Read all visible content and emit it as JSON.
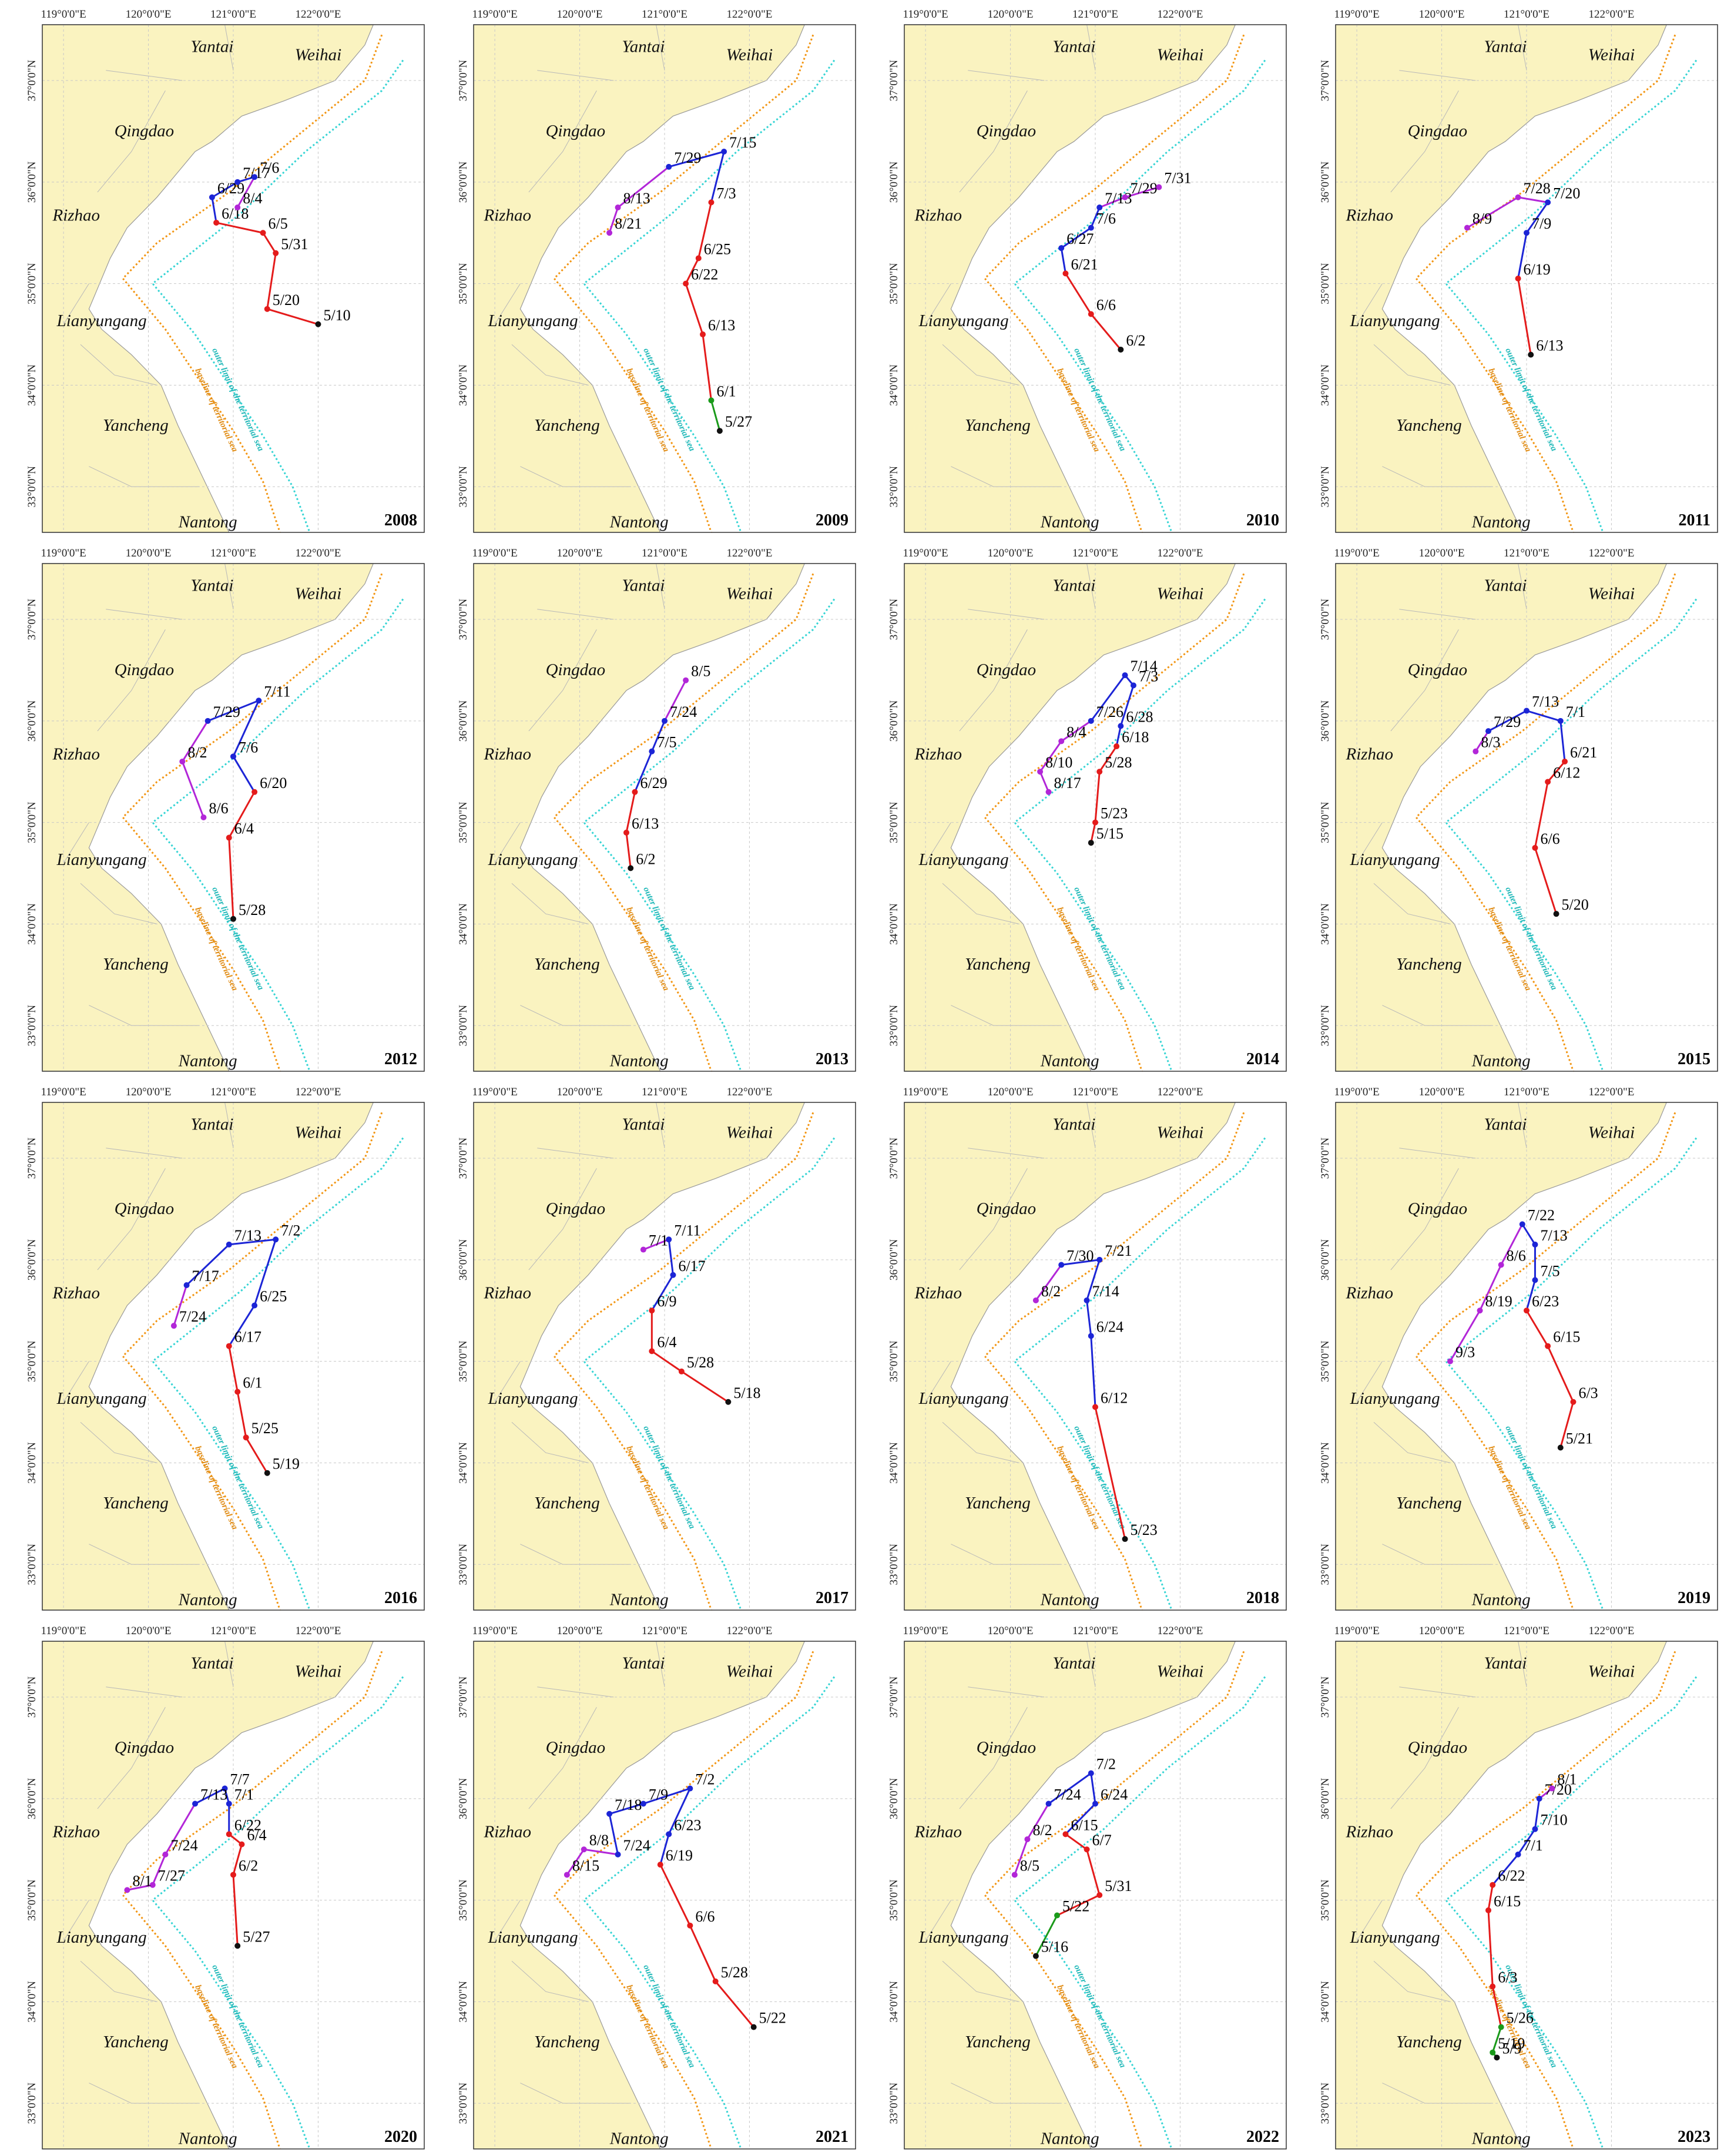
{
  "axes": {
    "lon_labels": [
      "119°0'0\"E",
      "120°0'0\"E",
      "121°0'0\"E",
      "122°0'0\"E"
    ],
    "lat_labels": [
      "37°0'0\"N",
      "36°0'0\"N",
      "35°0'0\"N",
      "34°0'0\"N",
      "33°0'0\"N"
    ],
    "lon_values": [
      119,
      120,
      121,
      122
    ],
    "lat_values": [
      37,
      36,
      35,
      34,
      33
    ],
    "lon_range": [
      118.75,
      123.25
    ],
    "lat_range": [
      32.55,
      37.55
    ]
  },
  "cities": [
    {
      "name": "Yantai",
      "lon": 120.75,
      "lat": 37.28
    },
    {
      "name": "Weihai",
      "lon": 122.0,
      "lat": 37.2
    },
    {
      "name": "Qingdao",
      "lon": 119.95,
      "lat": 36.45
    },
    {
      "name": "Rizhao",
      "lon": 119.15,
      "lat": 35.62
    },
    {
      "name": "Lianyungang",
      "lon": 119.45,
      "lat": 34.58
    },
    {
      "name": "Yancheng",
      "lon": 119.85,
      "lat": 33.55
    },
    {
      "name": "Nantong",
      "lon": 120.7,
      "lat": 32.6
    }
  ],
  "boundary_labels": {
    "outer": "outer limit of the territorial sea",
    "baseline": "baseline of territorial sea"
  },
  "colors": {
    "land": "#faf3c0",
    "sea": "#ffffff",
    "baseline": "#f29512",
    "outer": "#35d4d4",
    "phase1": "#1a9a1a",
    "phase2": "#e41b1b",
    "phase3": "#1c25d6",
    "phase4": "#b226d8"
  },
  "panels": [
    {
      "year": "2008",
      "points": [
        {
          "d": "5/10",
          "lon": 122.0,
          "lat": 34.6,
          "c": "phase1"
        },
        {
          "d": "5/20",
          "lon": 121.4,
          "lat": 34.75,
          "c": "phase2"
        },
        {
          "d": "5/31",
          "lon": 121.5,
          "lat": 35.3,
          "c": "phase2"
        },
        {
          "d": "6/5",
          "lon": 121.35,
          "lat": 35.5,
          "c": "phase2"
        },
        {
          "d": "6/18",
          "lon": 120.8,
          "lat": 35.6,
          "c": "phase2"
        },
        {
          "d": "6/29",
          "lon": 120.75,
          "lat": 35.85,
          "c": "phase3"
        },
        {
          "d": "7/17",
          "lon": 121.05,
          "lat": 36.0,
          "c": "phase3"
        },
        {
          "d": "7/6",
          "lon": 121.25,
          "lat": 36.05,
          "c": "phase3"
        },
        {
          "d": "8/4",
          "lon": 121.05,
          "lat": 35.75,
          "c": "phase4"
        }
      ]
    },
    {
      "year": "2009",
      "points": [
        {
          "d": "5/27",
          "lon": 121.65,
          "lat": 33.55,
          "c": "phase1"
        },
        {
          "d": "6/1",
          "lon": 121.55,
          "lat": 33.85,
          "c": "phase1"
        },
        {
          "d": "6/13",
          "lon": 121.45,
          "lat": 34.5,
          "c": "phase2"
        },
        {
          "d": "6/22",
          "lon": 121.25,
          "lat": 35.0,
          "c": "phase2"
        },
        {
          "d": "6/25",
          "lon": 121.4,
          "lat": 35.25,
          "c": "phase2"
        },
        {
          "d": "7/3",
          "lon": 121.55,
          "lat": 35.8,
          "c": "phase2"
        },
        {
          "d": "7/15",
          "lon": 121.7,
          "lat": 36.3,
          "c": "phase3"
        },
        {
          "d": "7/29",
          "lon": 121.05,
          "lat": 36.15,
          "c": "phase3"
        },
        {
          "d": "8/13",
          "lon": 120.45,
          "lat": 35.75,
          "c": "phase4"
        },
        {
          "d": "8/21",
          "lon": 120.35,
          "lat": 35.5,
          "c": "phase4"
        }
      ]
    },
    {
      "year": "2010",
      "points": [
        {
          "d": "6/2",
          "lon": 121.3,
          "lat": 34.35,
          "c": "phase1"
        },
        {
          "d": "6/6",
          "lon": 120.95,
          "lat": 34.7,
          "c": "phase2"
        },
        {
          "d": "6/21",
          "lon": 120.65,
          "lat": 35.1,
          "c": "phase2"
        },
        {
          "d": "6/27",
          "lon": 120.6,
          "lat": 35.35,
          "c": "phase3"
        },
        {
          "d": "7/6",
          "lon": 120.95,
          "lat": 35.55,
          "c": "phase3"
        },
        {
          "d": "7/13",
          "lon": 121.05,
          "lat": 35.75,
          "c": "phase3"
        },
        {
          "d": "7/29",
          "lon": 121.35,
          "lat": 35.85,
          "c": "phase4"
        },
        {
          "d": "7/31",
          "lon": 121.75,
          "lat": 35.95,
          "c": "phase4"
        }
      ]
    },
    {
      "year": "2011",
      "points": [
        {
          "d": "6/13",
          "lon": 121.05,
          "lat": 34.3,
          "c": "phase1"
        },
        {
          "d": "6/19",
          "lon": 120.9,
          "lat": 35.05,
          "c": "phase2"
        },
        {
          "d": "7/9",
          "lon": 121.0,
          "lat": 35.5,
          "c": "phase3"
        },
        {
          "d": "7/20",
          "lon": 121.25,
          "lat": 35.8,
          "c": "phase3"
        },
        {
          "d": "7/28",
          "lon": 120.9,
          "lat": 35.85,
          "c": "phase4"
        },
        {
          "d": "8/9",
          "lon": 120.3,
          "lat": 35.55,
          "c": "phase4"
        }
      ]
    },
    {
      "year": "2012",
      "points": [
        {
          "d": "5/28",
          "lon": 121.0,
          "lat": 34.05,
          "c": "phase1"
        },
        {
          "d": "6/4",
          "lon": 120.95,
          "lat": 34.85,
          "c": "phase2"
        },
        {
          "d": "6/20",
          "lon": 121.25,
          "lat": 35.3,
          "c": "phase2"
        },
        {
          "d": "7/6",
          "lon": 121.0,
          "lat": 35.65,
          "c": "phase3"
        },
        {
          "d": "7/11",
          "lon": 121.3,
          "lat": 36.2,
          "c": "phase3"
        },
        {
          "d": "7/29",
          "lon": 120.7,
          "lat": 36.0,
          "c": "phase3"
        },
        {
          "d": "8/2",
          "lon": 120.4,
          "lat": 35.6,
          "c": "phase4"
        },
        {
          "d": "8/6",
          "lon": 120.65,
          "lat": 35.05,
          "c": "phase4"
        }
      ]
    },
    {
      "year": "2013",
      "points": [
        {
          "d": "6/2",
          "lon": 120.6,
          "lat": 34.55,
          "c": "phase1"
        },
        {
          "d": "6/13",
          "lon": 120.55,
          "lat": 34.9,
          "c": "phase2"
        },
        {
          "d": "6/29",
          "lon": 120.65,
          "lat": 35.3,
          "c": "phase2"
        },
        {
          "d": "7/5",
          "lon": 120.85,
          "lat": 35.7,
          "c": "phase3"
        },
        {
          "d": "7/24",
          "lon": 121.0,
          "lat": 36.0,
          "c": "phase3"
        },
        {
          "d": "8/5",
          "lon": 121.25,
          "lat": 36.4,
          "c": "phase4"
        }
      ]
    },
    {
      "year": "2014",
      "points": [
        {
          "d": "5/15",
          "lon": 120.95,
          "lat": 34.8,
          "c": "phase1"
        },
        {
          "d": "5/23",
          "lon": 121.0,
          "lat": 35.0,
          "c": "phase2"
        },
        {
          "d": "5/28",
          "lon": 121.05,
          "lat": 35.5,
          "c": "phase2"
        },
        {
          "d": "6/18",
          "lon": 121.25,
          "lat": 35.75,
          "c": "phase2"
        },
        {
          "d": "6/28",
          "lon": 121.3,
          "lat": 35.95,
          "c": "phase3"
        },
        {
          "d": "7/3",
          "lon": 121.45,
          "lat": 36.35,
          "c": "phase3"
        },
        {
          "d": "7/14",
          "lon": 121.35,
          "lat": 36.45,
          "c": "phase3"
        },
        {
          "d": "7/26",
          "lon": 120.95,
          "lat": 36.0,
          "c": "phase3"
        },
        {
          "d": "8/4",
          "lon": 120.6,
          "lat": 35.8,
          "c": "phase4"
        },
        {
          "d": "8/10",
          "lon": 120.35,
          "lat": 35.5,
          "c": "phase4"
        },
        {
          "d": "8/17",
          "lon": 120.45,
          "lat": 35.3,
          "c": "phase4"
        }
      ]
    },
    {
      "year": "2015",
      "points": [
        {
          "d": "5/20",
          "lon": 121.35,
          "lat": 34.1,
          "c": "phase1"
        },
        {
          "d": "6/6",
          "lon": 121.1,
          "lat": 34.75,
          "c": "phase2"
        },
        {
          "d": "6/12",
          "lon": 121.25,
          "lat": 35.4,
          "c": "phase2"
        },
        {
          "d": "6/21",
          "lon": 121.45,
          "lat": 35.6,
          "c": "phase2"
        },
        {
          "d": "7/1",
          "lon": 121.4,
          "lat": 36.0,
          "c": "phase3"
        },
        {
          "d": "7/13",
          "lon": 121.0,
          "lat": 36.1,
          "c": "phase3"
        },
        {
          "d": "7/29",
          "lon": 120.55,
          "lat": 35.9,
          "c": "phase3"
        },
        {
          "d": "8/3",
          "lon": 120.4,
          "lat": 35.7,
          "c": "phase4"
        }
      ]
    },
    {
      "year": "2016",
      "points": [
        {
          "d": "5/19",
          "lon": 121.4,
          "lat": 33.9,
          "c": "phase1"
        },
        {
          "d": "5/25",
          "lon": 121.15,
          "lat": 34.25,
          "c": "phase2"
        },
        {
          "d": "6/1",
          "lon": 121.05,
          "lat": 34.7,
          "c": "phase2"
        },
        {
          "d": "6/17",
          "lon": 120.95,
          "lat": 35.15,
          "c": "phase2"
        },
        {
          "d": "6/25",
          "lon": 121.25,
          "lat": 35.55,
          "c": "phase3"
        },
        {
          "d": "7/2",
          "lon": 121.5,
          "lat": 36.2,
          "c": "phase3"
        },
        {
          "d": "7/13",
          "lon": 120.95,
          "lat": 36.15,
          "c": "phase3"
        },
        {
          "d": "7/17",
          "lon": 120.45,
          "lat": 35.75,
          "c": "phase3"
        },
        {
          "d": "7/24",
          "lon": 120.3,
          "lat": 35.35,
          "c": "phase4"
        }
      ]
    },
    {
      "year": "2017",
      "points": [
        {
          "d": "5/18",
          "lon": 121.75,
          "lat": 34.6,
          "c": "phase1"
        },
        {
          "d": "5/28",
          "lon": 121.2,
          "lat": 34.9,
          "c": "phase2"
        },
        {
          "d": "6/4",
          "lon": 120.85,
          "lat": 35.1,
          "c": "phase2"
        },
        {
          "d": "6/9",
          "lon": 120.85,
          "lat": 35.5,
          "c": "phase2"
        },
        {
          "d": "6/17",
          "lon": 121.1,
          "lat": 35.85,
          "c": "phase3"
        },
        {
          "d": "7/11",
          "lon": 121.05,
          "lat": 36.2,
          "c": "phase3"
        },
        {
          "d": "7/1",
          "lon": 120.75,
          "lat": 36.1,
          "c": "phase4"
        }
      ]
    },
    {
      "year": "2018",
      "points": [
        {
          "d": "5/23",
          "lon": 121.35,
          "lat": 33.25,
          "c": "phase1"
        },
        {
          "d": "6/12",
          "lon": 121.0,
          "lat": 34.55,
          "c": "phase2"
        },
        {
          "d": "6/24",
          "lon": 120.95,
          "lat": 35.25,
          "c": "phase3"
        },
        {
          "d": "7/14",
          "lon": 120.9,
          "lat": 35.6,
          "c": "phase3"
        },
        {
          "d": "7/21",
          "lon": 121.05,
          "lat": 36.0,
          "c": "phase3"
        },
        {
          "d": "7/30",
          "lon": 120.6,
          "lat": 35.95,
          "c": "phase3"
        },
        {
          "d": "8/2",
          "lon": 120.3,
          "lat": 35.6,
          "c": "phase4"
        }
      ]
    },
    {
      "year": "2019",
      "points": [
        {
          "d": "5/21",
          "lon": 121.4,
          "lat": 34.15,
          "c": "phase1"
        },
        {
          "d": "6/3",
          "lon": 121.55,
          "lat": 34.6,
          "c": "phase2"
        },
        {
          "d": "6/15",
          "lon": 121.25,
          "lat": 35.15,
          "c": "phase2"
        },
        {
          "d": "6/23",
          "lon": 121.0,
          "lat": 35.5,
          "c": "phase2"
        },
        {
          "d": "7/5",
          "lon": 121.1,
          "lat": 35.8,
          "c": "phase3"
        },
        {
          "d": "7/13",
          "lon": 121.1,
          "lat": 36.15,
          "c": "phase3"
        },
        {
          "d": "7/22",
          "lon": 120.95,
          "lat": 36.35,
          "c": "phase3"
        },
        {
          "d": "8/6",
          "lon": 120.7,
          "lat": 35.95,
          "c": "phase4"
        },
        {
          "d": "8/19",
          "lon": 120.45,
          "lat": 35.5,
          "c": "phase4"
        },
        {
          "d": "9/3",
          "lon": 120.1,
          "lat": 35.0,
          "c": "phase4"
        }
      ]
    },
    {
      "year": "2020",
      "points": [
        {
          "d": "5/27",
          "lon": 121.05,
          "lat": 34.55,
          "c": "phase1"
        },
        {
          "d": "6/2",
          "lon": 121.0,
          "lat": 35.25,
          "c": "phase2"
        },
        {
          "d": "6/4",
          "lon": 121.1,
          "lat": 35.55,
          "c": "phase2"
        },
        {
          "d": "6/22",
          "lon": 120.95,
          "lat": 35.65,
          "c": "phase2"
        },
        {
          "d": "7/1",
          "lon": 120.95,
          "lat": 35.95,
          "c": "phase3"
        },
        {
          "d": "7/7",
          "lon": 120.9,
          "lat": 36.1,
          "c": "phase3"
        },
        {
          "d": "7/13",
          "lon": 120.55,
          "lat": 35.95,
          "c": "phase3"
        },
        {
          "d": "7/24",
          "lon": 120.2,
          "lat": 35.45,
          "c": "phase4"
        },
        {
          "d": "7/27",
          "lon": 120.05,
          "lat": 35.15,
          "c": "phase4"
        },
        {
          "d": "8/1",
          "lon": 119.75,
          "lat": 35.1,
          "c": "phase4"
        }
      ]
    },
    {
      "year": "2021",
      "points": [
        {
          "d": "5/22",
          "lon": 122.05,
          "lat": 33.75,
          "c": "phase1"
        },
        {
          "d": "5/28",
          "lon": 121.6,
          "lat": 34.2,
          "c": "phase2"
        },
        {
          "d": "6/6",
          "lon": 121.3,
          "lat": 34.75,
          "c": "phase2"
        },
        {
          "d": "6/19",
          "lon": 120.95,
          "lat": 35.35,
          "c": "phase2"
        },
        {
          "d": "6/23",
          "lon": 121.05,
          "lat": 35.65,
          "c": "phase3"
        },
        {
          "d": "7/2",
          "lon": 121.3,
          "lat": 36.1,
          "c": "phase3"
        },
        {
          "d": "7/9",
          "lon": 120.75,
          "lat": 35.95,
          "c": "phase3"
        },
        {
          "d": "7/18",
          "lon": 120.35,
          "lat": 35.85,
          "c": "phase3"
        },
        {
          "d": "7/24",
          "lon": 120.45,
          "lat": 35.45,
          "c": "phase3"
        },
        {
          "d": "8/8",
          "lon": 120.05,
          "lat": 35.5,
          "c": "phase4"
        },
        {
          "d": "8/15",
          "lon": 119.85,
          "lat": 35.25,
          "c": "phase4"
        }
      ]
    },
    {
      "year": "2022",
      "points": [
        {
          "d": "5/16",
          "lon": 120.3,
          "lat": 34.45,
          "c": "phase1"
        },
        {
          "d": "5/22",
          "lon": 120.55,
          "lat": 34.85,
          "c": "phase1"
        },
        {
          "d": "5/31",
          "lon": 121.05,
          "lat": 35.05,
          "c": "phase2"
        },
        {
          "d": "6/7",
          "lon": 120.9,
          "lat": 35.5,
          "c": "phase2"
        },
        {
          "d": "6/15",
          "lon": 120.65,
          "lat": 35.65,
          "c": "phase2"
        },
        {
          "d": "6/24",
          "lon": 121.0,
          "lat": 35.95,
          "c": "phase3"
        },
        {
          "d": "7/2",
          "lon": 120.95,
          "lat": 36.25,
          "c": "phase3"
        },
        {
          "d": "7/24",
          "lon": 120.45,
          "lat": 35.95,
          "c": "phase3"
        },
        {
          "d": "8/2",
          "lon": 120.2,
          "lat": 35.6,
          "c": "phase4"
        },
        {
          "d": "8/5",
          "lon": 120.05,
          "lat": 35.25,
          "c": "phase4"
        }
      ]
    },
    {
      "year": "2023",
      "points": [
        {
          "d": "5/9",
          "lon": 120.65,
          "lat": 33.45,
          "c": "phase1"
        },
        {
          "d": "5/19",
          "lon": 120.6,
          "lat": 33.5,
          "c": "phase1"
        },
        {
          "d": "5/26",
          "lon": 120.7,
          "lat": 33.75,
          "c": "phase1"
        },
        {
          "d": "6/3",
          "lon": 120.6,
          "lat": 34.15,
          "c": "phase2"
        },
        {
          "d": "6/15",
          "lon": 120.55,
          "lat": 34.9,
          "c": "phase2"
        },
        {
          "d": "6/22",
          "lon": 120.6,
          "lat": 35.15,
          "c": "phase2"
        },
        {
          "d": "7/1",
          "lon": 120.9,
          "lat": 35.45,
          "c": "phase3"
        },
        {
          "d": "7/10",
          "lon": 121.1,
          "lat": 35.7,
          "c": "phase3"
        },
        {
          "d": "7/20",
          "lon": 121.15,
          "lat": 36.0,
          "c": "phase3"
        },
        {
          "d": "8/1",
          "lon": 121.3,
          "lat": 36.1,
          "c": "phase4"
        }
      ]
    }
  ]
}
